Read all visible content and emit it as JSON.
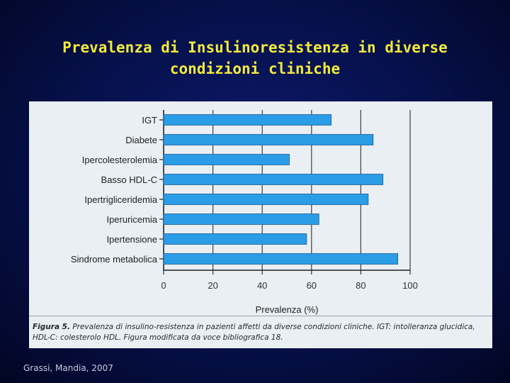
{
  "slide": {
    "title_line1": "Prevalenza di Insulinoresistenza in diverse",
    "title_line2": "condizioni cliniche",
    "credit": "Grassi, Mandia, 2007"
  },
  "caption": {
    "label": "Figura 5.",
    "text": "Prevalenza di insulino-resistenza in pazienti affetti da diverse condizioni cliniche. IGT: intolleranza glucidica, HDL-C: colesterolo HDL. Figura modificata da voce bibliografica 18."
  },
  "chart_data": {
    "type": "bar",
    "orientation": "horizontal",
    "categories": [
      "IGT",
      "Diabete",
      "Ipercolesterolemia",
      "Basso HDL-C",
      "Ipertrigliceridemia",
      "Iperuricemia",
      "Ipertensione",
      "Sindrome metabolica"
    ],
    "values": [
      68,
      85,
      51,
      89,
      83,
      63,
      58,
      95
    ],
    "xlabel": "Prevalenza (%)",
    "ylabel": "",
    "xlim": [
      0,
      100
    ],
    "xticks": [
      0,
      20,
      40,
      60,
      80,
      100
    ],
    "grid": true,
    "bar_color": "#2b9ce6"
  }
}
